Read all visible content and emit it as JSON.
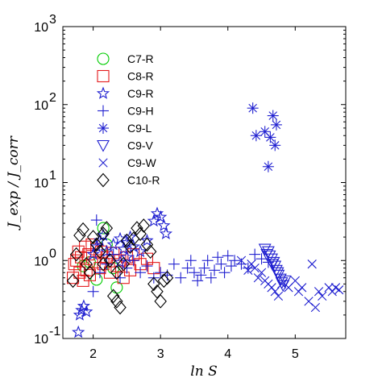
{
  "chart_data": {
    "type": "scatter",
    "title": "",
    "xlabel": "ln S",
    "ylabel": "J_exp / J_corr",
    "xscale": "linear",
    "yscale": "log",
    "xlim": [
      1.55,
      5.75
    ],
    "ylim": [
      0.1,
      1000
    ],
    "xticks": [
      2,
      3,
      4,
      5
    ],
    "yticks": [
      0.1,
      1,
      10,
      100,
      1000
    ],
    "ytick_labels": [
      {
        "base": "10",
        "exp": "-1"
      },
      {
        "base": "10",
        "exp": "0"
      },
      {
        "base": "10",
        "exp": "1"
      },
      {
        "base": "10",
        "exp": "2"
      },
      {
        "base": "10",
        "exp": "3"
      }
    ],
    "grid": false,
    "legend_position": "upper-left",
    "series": [
      {
        "name": "C7-R",
        "marker": "circle",
        "color": "#00cc00",
        "points": [
          [
            1.85,
            0.85
          ],
          [
            1.95,
            0.95
          ],
          [
            2.05,
            0.57
          ],
          [
            2.15,
            2.6
          ],
          [
            2.2,
            1.6
          ],
          [
            2.3,
            0.8
          ],
          [
            2.35,
            0.45
          ]
        ]
      },
      {
        "name": "C8-R",
        "marker": "square",
        "color": "#e41a1c",
        "points": [
          [
            1.7,
            0.6
          ],
          [
            1.72,
            0.9
          ],
          [
            1.75,
            1.0
          ],
          [
            1.78,
            1.3
          ],
          [
            1.8,
            0.7
          ],
          [
            1.82,
            1.1
          ],
          [
            1.85,
            0.55
          ],
          [
            1.88,
            1.5
          ],
          [
            1.9,
            0.75
          ],
          [
            1.93,
            1.2
          ],
          [
            1.95,
            0.65
          ],
          [
            1.98,
            1.6
          ],
          [
            2.02,
            0.95
          ],
          [
            2.05,
            1.4
          ],
          [
            2.1,
            0.8
          ],
          [
            2.12,
            1.3
          ],
          [
            2.15,
            0.9
          ],
          [
            2.2,
            1.1
          ],
          [
            2.25,
            0.7
          ],
          [
            2.3,
            1.25
          ],
          [
            2.35,
            0.85
          ],
          [
            2.4,
            1.0
          ],
          [
            2.45,
            0.6
          ],
          [
            2.5,
            1.1
          ],
          [
            2.55,
            0.75
          ],
          [
            2.6,
            1.2
          ],
          [
            2.7,
            0.9
          ],
          [
            2.8,
            1.05
          ],
          [
            2.9,
            0.8
          ]
        ]
      },
      {
        "name": "C9-R",
        "marker": "star",
        "color": "#1f1fd0",
        "points": [
          [
            1.78,
            0.12
          ],
          [
            1.8,
            0.2
          ],
          [
            1.83,
            0.23
          ],
          [
            1.86,
            0.26
          ],
          [
            1.9,
            0.22
          ],
          [
            2.0,
            1.2
          ],
          [
            2.05,
            1.5
          ],
          [
            2.1,
            1.8
          ],
          [
            2.15,
            2.1
          ],
          [
            2.2,
            1.3
          ],
          [
            2.3,
            1.6
          ],
          [
            2.4,
            1.9
          ],
          [
            2.45,
            1.4
          ],
          [
            2.5,
            1.7
          ],
          [
            2.55,
            2.0
          ],
          [
            2.6,
            1.5
          ],
          [
            2.7,
            1.3
          ],
          [
            2.8,
            1.8
          ],
          [
            2.9,
            3.2
          ],
          [
            2.95,
            4.0
          ],
          [
            3.0,
            3.6
          ],
          [
            3.05,
            2.8
          ],
          [
            3.08,
            2.2
          ],
          [
            2.4,
            0.95
          ],
          [
            2.5,
            1.1
          ]
        ]
      },
      {
        "name": "C9-H",
        "marker": "plus",
        "color": "#1f1fd0",
        "points": [
          [
            2.0,
            0.4
          ],
          [
            2.05,
            3.3
          ],
          [
            2.1,
            0.7
          ],
          [
            2.2,
            0.9
          ],
          [
            2.3,
            1.2
          ],
          [
            2.4,
            0.6
          ],
          [
            2.5,
            0.8
          ],
          [
            2.6,
            1.0
          ],
          [
            2.7,
            0.7
          ],
          [
            2.8,
            0.85
          ],
          [
            2.9,
            0.6
          ],
          [
            3.0,
            0.7
          ],
          [
            3.1,
            0.65
          ],
          [
            3.2,
            0.9
          ],
          [
            3.3,
            0.6
          ],
          [
            3.4,
            0.8
          ],
          [
            3.45,
            1.0
          ],
          [
            3.5,
            0.7
          ],
          [
            3.55,
            0.55
          ],
          [
            3.6,
            0.65
          ],
          [
            3.65,
            0.8
          ],
          [
            3.7,
            1.0
          ],
          [
            3.75,
            0.6
          ],
          [
            3.8,
            0.75
          ],
          [
            3.85,
            1.1
          ],
          [
            3.9,
            0.9
          ],
          [
            3.95,
            0.7
          ],
          [
            4.0,
            1.15
          ],
          [
            4.05,
            0.85
          ],
          [
            4.1,
            1.0
          ],
          [
            4.2,
            0.9
          ],
          [
            4.3,
            0.8
          ],
          [
            4.4,
            1.2
          ],
          [
            4.5,
            1.05
          ],
          [
            4.6,
            0.95
          ]
        ]
      },
      {
        "name": "C9-L",
        "marker": "asterisk",
        "color": "#1f1fd0",
        "points": [
          [
            4.37,
            90
          ],
          [
            4.42,
            40
          ],
          [
            4.55,
            45
          ],
          [
            4.6,
            16
          ],
          [
            4.63,
            38
          ],
          [
            4.67,
            72
          ],
          [
            4.7,
            30
          ],
          [
            4.72,
            55
          ]
        ]
      },
      {
        "name": "C9-V",
        "marker": "triangle-down",
        "color": "#1f1fd0",
        "points": [
          [
            4.55,
            1.4
          ],
          [
            4.6,
            1.3
          ],
          [
            4.62,
            1.15
          ],
          [
            4.65,
            1.05
          ],
          [
            4.68,
            0.95
          ],
          [
            4.7,
            0.85
          ],
          [
            4.72,
            0.75
          ],
          [
            4.75,
            0.65
          ],
          [
            4.78,
            0.58
          ],
          [
            4.8,
            0.52
          ],
          [
            4.82,
            0.48
          ],
          [
            4.85,
            0.55
          ],
          [
            4.66,
            0.9
          ],
          [
            4.74,
            0.7
          ],
          [
            4.58,
            1.2
          ]
        ]
      },
      {
        "name": "C9-W",
        "marker": "x",
        "color": "#1f1fd0",
        "points": [
          [
            4.2,
            1.0
          ],
          [
            4.3,
            0.75
          ],
          [
            4.35,
            0.9
          ],
          [
            4.4,
            0.8
          ],
          [
            4.45,
            0.6
          ],
          [
            4.5,
            0.7
          ],
          [
            4.55,
            0.55
          ],
          [
            4.6,
            0.5
          ],
          [
            4.65,
            0.45
          ],
          [
            4.7,
            0.4
          ],
          [
            4.75,
            0.35
          ],
          [
            4.8,
            0.5
          ],
          [
            4.9,
            0.45
          ],
          [
            5.0,
            0.55
          ],
          [
            5.05,
            0.4
          ],
          [
            5.1,
            0.45
          ],
          [
            5.2,
            0.3
          ],
          [
            5.25,
            0.9
          ],
          [
            5.3,
            0.25
          ],
          [
            5.35,
            0.4
          ],
          [
            5.4,
            0.35
          ],
          [
            5.5,
            0.45
          ],
          [
            5.55,
            0.4
          ],
          [
            5.6,
            0.45
          ],
          [
            5.65,
            0.42
          ]
        ]
      },
      {
        "name": "C10-R",
        "marker": "diamond",
        "color": "#000000",
        "points": [
          [
            1.7,
            0.55
          ],
          [
            1.75,
            1.2
          ],
          [
            1.8,
            2.1
          ],
          [
            1.85,
            2.5
          ],
          [
            1.9,
            0.9
          ],
          [
            1.95,
            0.7
          ],
          [
            2.0,
            2.0
          ],
          [
            2.05,
            1.6
          ],
          [
            2.1,
            1.3
          ],
          [
            2.15,
            2.2
          ],
          [
            2.2,
            2.6
          ],
          [
            2.25,
            1.0
          ],
          [
            2.3,
            0.35
          ],
          [
            2.35,
            0.3
          ],
          [
            2.4,
            0.25
          ],
          [
            2.45,
            0.9
          ],
          [
            2.5,
            1.8
          ],
          [
            2.55,
            1.5
          ],
          [
            2.6,
            1.9
          ],
          [
            2.65,
            2.6
          ],
          [
            2.7,
            2.2
          ],
          [
            2.75,
            2.8
          ],
          [
            2.8,
            1.6
          ],
          [
            2.85,
            1.3
          ],
          [
            2.9,
            0.5
          ],
          [
            2.95,
            0.4
          ],
          [
            3.0,
            0.3
          ],
          [
            3.05,
            0.55
          ],
          [
            3.1,
            0.6
          ],
          [
            2.35,
            0.7
          ],
          [
            2.15,
            0.9
          ]
        ]
      }
    ]
  }
}
